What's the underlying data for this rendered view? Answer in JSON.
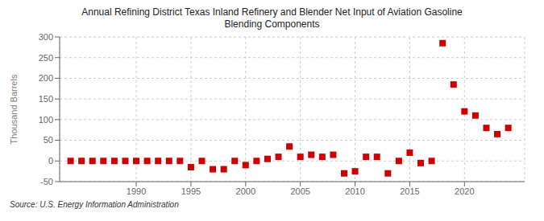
{
  "chart_data": {
    "type": "scatter",
    "title": "Annual Refining District Texas Inland Refinery and Blender Net Input of Aviation Gasoline\nBlending Components",
    "y_label": "Thousand Barrels",
    "annotations": [
      "Source: U.S. Energy Information Administration"
    ],
    "x": [
      1984,
      1985,
      1986,
      1987,
      1988,
      1989,
      1990,
      1991,
      1992,
      1993,
      1994,
      1995,
      1996,
      1997,
      1998,
      1999,
      2000,
      2001,
      2002,
      2003,
      2004,
      2005,
      2006,
      2007,
      2008,
      2009,
      2010,
      2011,
      2012,
      2013,
      2014,
      2015,
      2016,
      2017,
      2018,
      2019,
      2020,
      2021,
      2022,
      2023,
      2024
    ],
    "values": [
      0,
      0,
      0,
      0,
      0,
      0,
      0,
      0,
      0,
      0,
      0,
      -15,
      0,
      -20,
      -20,
      0,
      -10,
      0,
      5,
      10,
      35,
      10,
      15,
      10,
      15,
      -30,
      -25,
      10,
      10,
      -30,
      0,
      20,
      -5,
      0,
      285,
      185,
      120,
      110,
      80,
      65,
      80
    ],
    "color": "#cc0000",
    "marker": "square",
    "xlim": [
      1983,
      2025.5
    ],
    "ylim": [
      -50,
      300
    ],
    "xticks": [
      1990,
      1995,
      2000,
      2005,
      2010,
      2015,
      2020
    ],
    "yticks": [
      -50,
      0,
      50,
      100,
      150,
      200,
      250,
      300
    ],
    "grid": true
  }
}
